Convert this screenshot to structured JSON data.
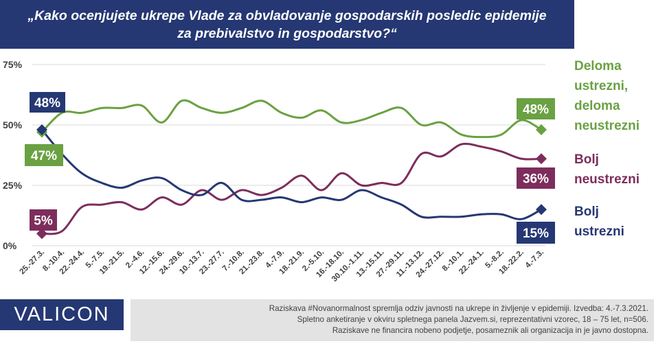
{
  "title": "„Kako ocenjujete ukrepe Vlade za obvladovanje gospodarskih posledic epidemije\nza prebivalstvo in gospodarstvo?“",
  "logo": "VALICON",
  "notes": [
    "Raziskava #Novanormalnost spremlja odziv javnosti na ukrepe in življenje v epidemiji. Izvedba: 4.-7.3.2021.",
    "Spletno anketiranje v okviru spletnega panela Jazvem.si, reprezentativni vzorec, 18 – 75 let, n=506.",
    "Raziskave ne financira nobeno podjetje, posameznik ali organizacija in je javno dostopna."
  ],
  "chart_data": {
    "type": "line",
    "title": "„Kako ocenjujete ukrepe Vlade za obvladovanje gospodarskih posledic epidemije za prebivalstvo in gospodarstvo?“",
    "ylim": [
      0,
      75
    ],
    "yticks": [
      0,
      25,
      50,
      75
    ],
    "ytick_labels": [
      "0%",
      "25%",
      "50%",
      "75%"
    ],
    "grid": true,
    "legend": "right",
    "categories": [
      "25.-27.3.",
      "8.-10.4.",
      "22.-24.4.",
      "5.-7.5.",
      "19.-21.5.",
      "2.-4.6.",
      "12.-15.6.",
      "24.-29.6.",
      "10.-13.7.",
      "23.-27.7.",
      "7.-10.8.",
      "21.-23.8.",
      "4.-7.9.",
      "18.-21.9.",
      "2.-5.10.",
      "16.-18.10.",
      "30.10.-1.11.",
      "13.-15.11.",
      "27.-29.11.",
      "11.-13.12.",
      "24.-27.12.",
      "8.-10.1.",
      "22.-24.1.",
      "5.-8.2.",
      "18.-22.2.",
      "4.-7.3."
    ],
    "series": [
      {
        "name": "Deloma ustrezni, deloma neustrezni",
        "color": "#6aa142",
        "values": [
          47,
          55,
          55,
          57,
          57,
          58,
          51,
          60,
          57,
          55,
          57,
          60,
          55,
          53,
          56,
          51,
          52,
          55,
          57,
          50,
          51,
          46,
          45,
          46,
          52,
          48
        ],
        "first_label": "47%",
        "last_label": "48%"
      },
      {
        "name": "Bolj neustrezni",
        "color": "#7d2d5c",
        "values": [
          5,
          6,
          16,
          17,
          18,
          15,
          20,
          17,
          23,
          19,
          23,
          21,
          24,
          29,
          23,
          30,
          25,
          26,
          26,
          38,
          37,
          42,
          41,
          39,
          36,
          36
        ],
        "first_label": "5%",
        "last_label": "36%"
      },
      {
        "name": "Bolj ustrezni",
        "color": "#253873",
        "values": [
          48,
          38,
          30,
          26,
          24,
          27,
          28,
          23,
          21,
          26,
          19,
          19,
          20,
          18,
          20,
          19,
          23,
          20,
          17,
          12,
          12,
          12,
          13,
          13,
          11,
          15
        ],
        "first_label": "48%",
        "last_label": "15%"
      }
    ]
  },
  "legend_labels": {
    "green": "Deloma\nustrezni,\ndeloma\nneustrezni",
    "purple": "Bolj\nneustrezni",
    "blue": "Bolj\nustrezni"
  }
}
